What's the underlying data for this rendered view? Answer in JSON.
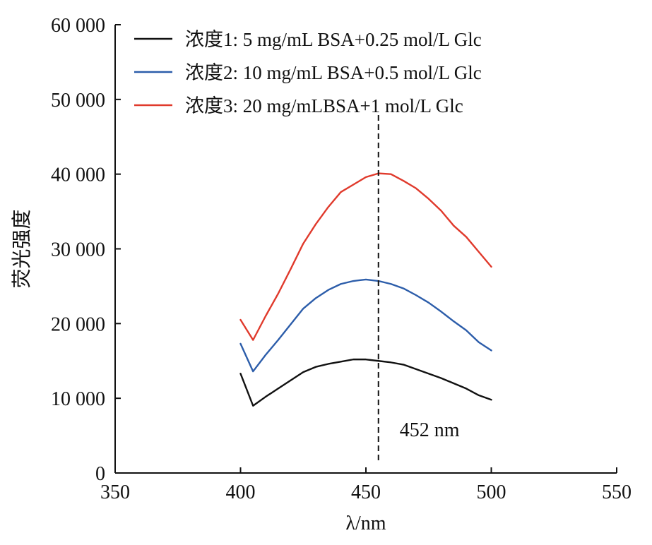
{
  "chart_data": {
    "type": "line",
    "xlabel": "λ/nm",
    "ylabel": "荧光强度",
    "xlim": [
      350,
      550
    ],
    "ylim": [
      0,
      60000
    ],
    "x_ticks": [
      350,
      400,
      450,
      500,
      550
    ],
    "y_ticks": [
      0,
      10000,
      20000,
      30000,
      40000,
      50000,
      60000
    ],
    "x_tick_labels": [
      "350",
      "400",
      "450",
      "500",
      "550"
    ],
    "y_tick_labels": [
      "0",
      "10 000",
      "20 000",
      "30 000",
      "40 000",
      "50 000",
      "60 000"
    ],
    "grid": false,
    "legend_position": "top-left",
    "series": [
      {
        "name": "浓度1: 5 mg/mL BSA+0.25 mol/L Glc",
        "color": "#111111",
        "x": [
          400,
          405,
          410,
          415,
          420,
          425,
          430,
          435,
          440,
          445,
          450,
          455,
          460,
          465,
          470,
          475,
          480,
          485,
          490,
          495,
          500
        ],
        "y": [
          13300,
          9000,
          10200,
          11300,
          12400,
          13500,
          14200,
          14600,
          14900,
          15200,
          15200,
          15000,
          14800,
          14500,
          13900,
          13300,
          12700,
          12000,
          11300,
          10400,
          9800
        ]
      },
      {
        "name": "浓度2: 10 mg/mL BSA+0.5 mol/L Glc",
        "color": "#2c5daa",
        "x": [
          400,
          405,
          410,
          415,
          420,
          425,
          430,
          435,
          440,
          445,
          450,
          455,
          460,
          465,
          470,
          475,
          480,
          485,
          490,
          495,
          500
        ],
        "y": [
          17300,
          13600,
          15800,
          17800,
          19900,
          22000,
          23400,
          24500,
          25300,
          25700,
          25900,
          25700,
          25300,
          24700,
          23800,
          22800,
          21600,
          20300,
          19100,
          17500,
          16400
        ]
      },
      {
        "name": "浓度3: 20 mg/mLBSA+1 mol/L Glc",
        "color": "#e03a2c",
        "x": [
          400,
          405,
          410,
          415,
          420,
          425,
          430,
          435,
          440,
          445,
          450,
          455,
          460,
          465,
          470,
          475,
          480,
          485,
          490,
          495,
          500
        ],
        "y": [
          20500,
          17800,
          21000,
          24000,
          27300,
          30700,
          33300,
          35600,
          37600,
          38600,
          39600,
          40100,
          40000,
          39100,
          38100,
          36700,
          35100,
          33100,
          31600,
          29600,
          27600
        ]
      }
    ],
    "annotations": [
      {
        "type": "vline",
        "x": 455,
        "style": "dashed",
        "color": "#111111",
        "text": "452 nm"
      }
    ]
  }
}
